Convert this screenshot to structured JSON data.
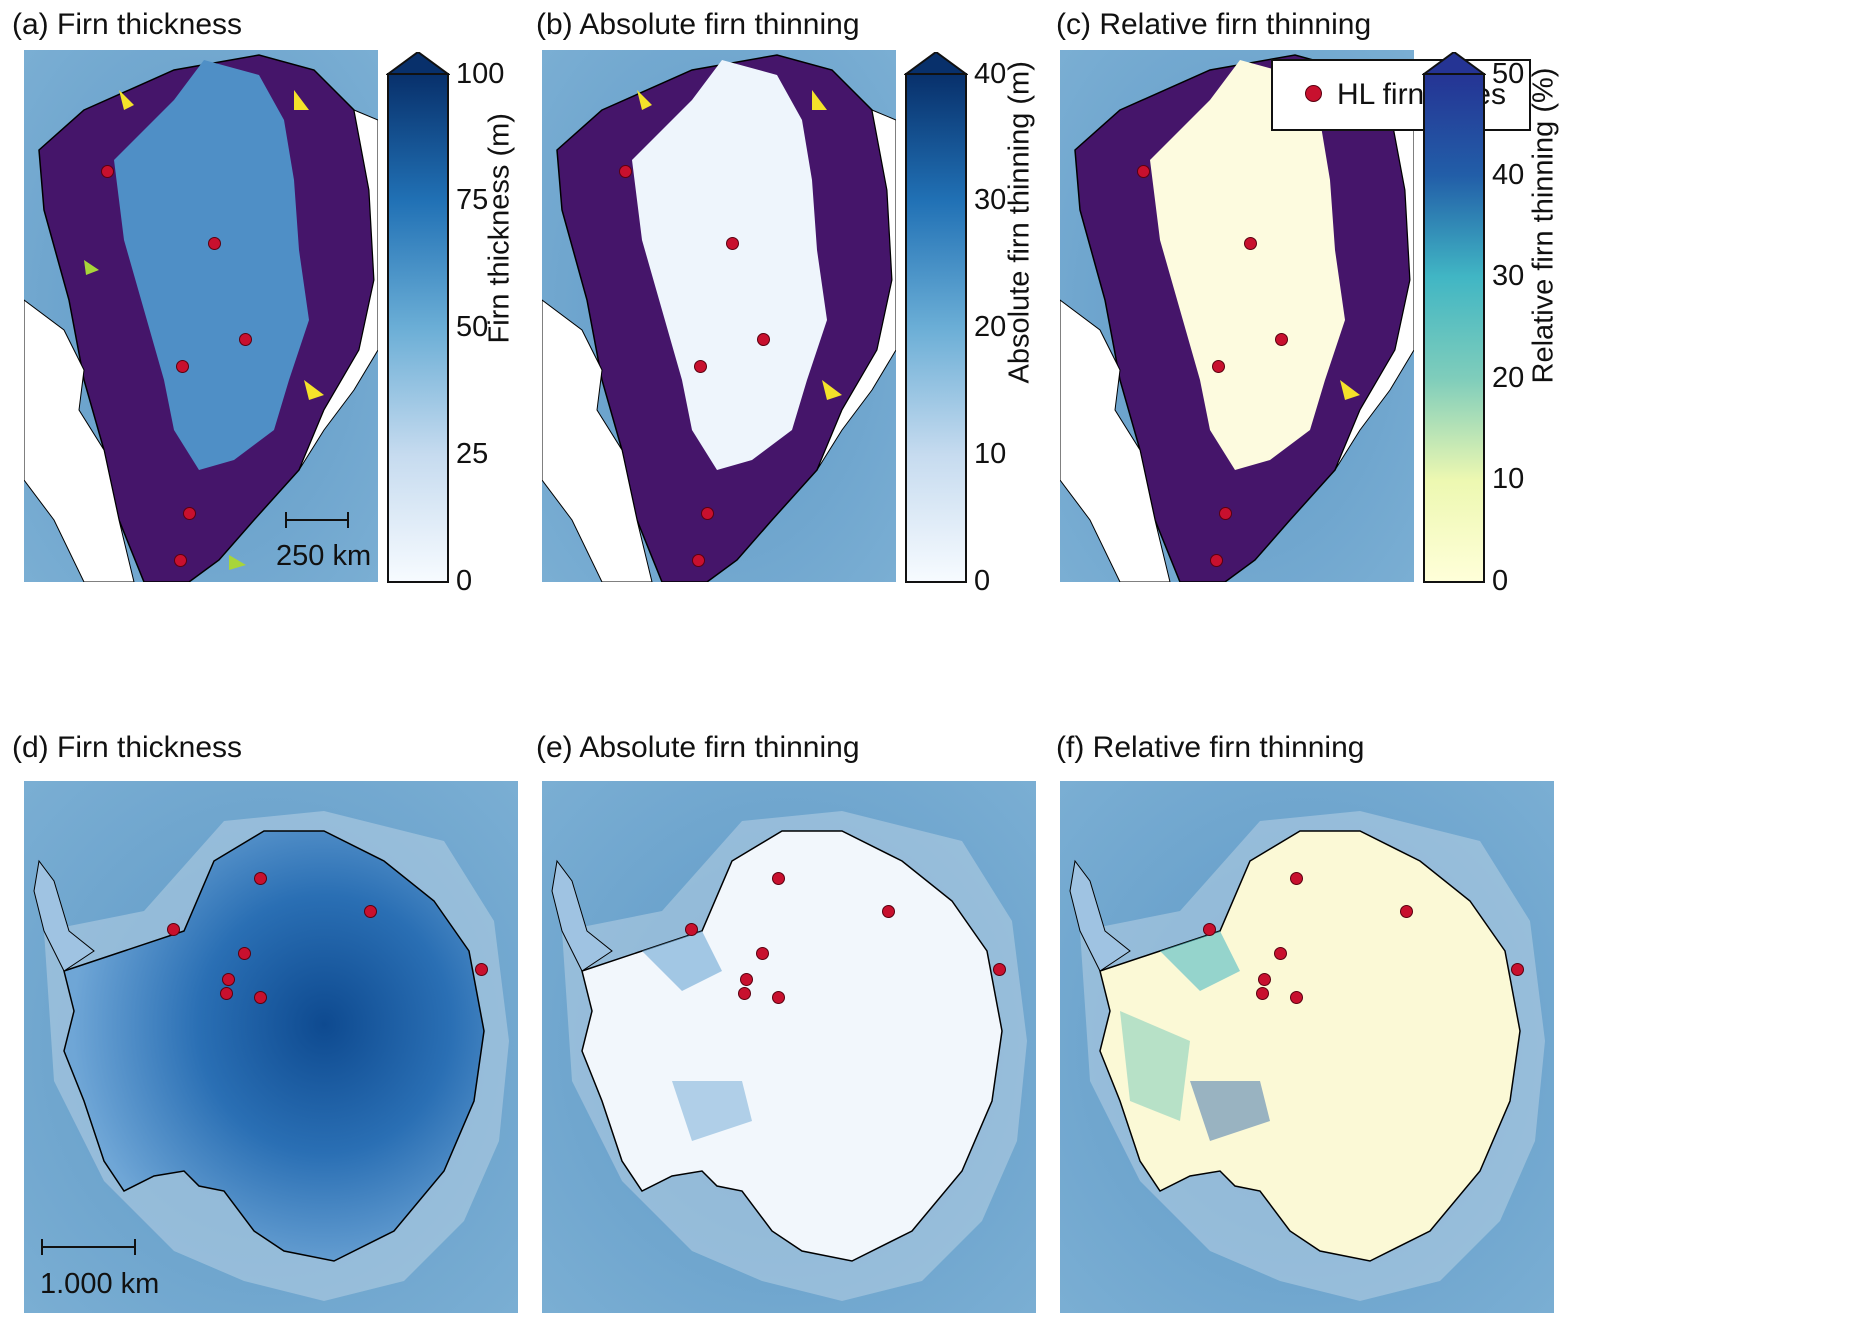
{
  "panels": {
    "a": {
      "title": "(a) Firn thickness"
    },
    "b": {
      "title": "(b) Absolute firn thinning"
    },
    "c": {
      "title": "(c) Relative firn thinning"
    },
    "d": {
      "title": "(d) Firn thickness"
    },
    "e": {
      "title": "(e) Absolute firn thinning"
    },
    "f": {
      "title": "(f) Relative firn thinning"
    }
  },
  "colorbars": [
    {
      "label": "Firn thickness (m)",
      "ticks": [
        "0",
        "25",
        "50",
        "75",
        "100"
      ],
      "min": 0,
      "max": 100,
      "extend": "max",
      "cmap": "blues"
    },
    {
      "label": "Absolute firn thinning (m)",
      "ticks": [
        "0",
        "10",
        "20",
        "30",
        "40"
      ],
      "min": 0,
      "max": 40,
      "extend": "max",
      "cmap": "blues"
    },
    {
      "label": "Relative firn thinning (%)",
      "ticks": [
        "0",
        "10",
        "20",
        "30",
        "40",
        "50"
      ],
      "min": 0,
      "max": 50,
      "extend": "max",
      "cmap": "ylgnbu"
    }
  ],
  "legend": {
    "label": "HL firn cores",
    "marker_color": "#c8102e"
  },
  "scale_bars": {
    "greenland": "250 km",
    "antarctica": "1.000 km"
  },
  "colors": {
    "ocean": "#6ea3c9",
    "ice_a": "#4f8fc6",
    "ice_thin": "#eef5fc",
    "ice_rel": "#fdfbdf",
    "margin": "#45156a"
  }
}
